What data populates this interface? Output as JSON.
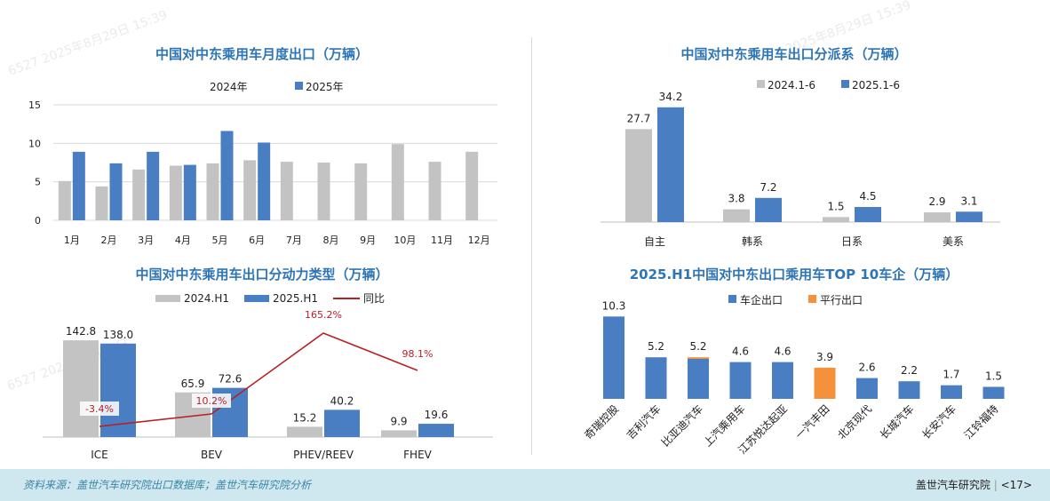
{
  "footer": {
    "source": "资料来源：盖世汽车研究院出口数据库；盖世汽车研究院分析",
    "org": "盖世汽车研究院",
    "page": "<17>"
  },
  "colors": {
    "blue": "#4A7EC2",
    "gray": "#C3C3C3",
    "orange": "#F5913A",
    "red": "#B82025",
    "title": "#2E75B6"
  },
  "chart_data": [
    {
      "id": "monthly",
      "type": "bar",
      "title": "中国对中东乘用车月度出口（万辆）",
      "categories": [
        "1月",
        "2月",
        "3月",
        "4月",
        "5月",
        "6月",
        "7月",
        "8月",
        "9月",
        "10月",
        "11月",
        "12月"
      ],
      "series": [
        {
          "name": "2024年",
          "values": [
            5.1,
            4.4,
            6.6,
            7.1,
            7.4,
            7.8,
            7.6,
            7.5,
            7.4,
            9.9,
            7.6,
            8.9
          ]
        },
        {
          "name": "2025年",
          "values": [
            8.9,
            7.4,
            8.9,
            7.2,
            11.6,
            10.1,
            null,
            null,
            null,
            null,
            null,
            null
          ]
        }
      ],
      "yticks": [
        0,
        5,
        10,
        15
      ],
      "ylim": [
        0,
        15
      ]
    },
    {
      "id": "powertrain",
      "type": "bar",
      "title": "中国对中东乘用车出口分动力类型（万辆）",
      "categories": [
        "ICE",
        "BEV",
        "PHEV/REEV",
        "FHEV"
      ],
      "series": [
        {
          "name": "2024.H1",
          "values": [
            142.8,
            65.9,
            15.2,
            9.9
          ]
        },
        {
          "name": "2025.H1",
          "values": [
            138.0,
            72.6,
            40.2,
            19.6
          ]
        }
      ],
      "line": {
        "name": "同比",
        "values": [
          -3.4,
          10.2,
          165.2,
          98.1
        ],
        "labels": [
          "-3.4%",
          "10.2%",
          "165.2%",
          "98.1%"
        ]
      },
      "ylim": [
        0,
        160
      ]
    },
    {
      "id": "brand_origin",
      "type": "bar",
      "title": "中国对中东乘用车出口分派系（万辆）",
      "categories": [
        "自主",
        "韩系",
        "日系",
        "美系"
      ],
      "series": [
        {
          "name": "2024.1-6",
          "values": [
            27.7,
            3.8,
            1.5,
            2.9
          ]
        },
        {
          "name": "2025.1-6",
          "values": [
            34.2,
            7.2,
            4.5,
            3.1
          ]
        }
      ],
      "ylim": [
        0,
        36
      ]
    },
    {
      "id": "top10",
      "type": "bar",
      "title": "2025.H1中国对中东出口乘用车TOP 10车企（万辆）",
      "categories": [
        "奇瑞控股",
        "吉利汽车",
        "比亚迪汽车",
        "上汽乘用车",
        "江苏悦达起亚",
        "一汽丰田",
        "北京现代",
        "长城汽车",
        "长安汽车",
        "江铃福特"
      ],
      "series": [
        {
          "name": "车企出口",
          "values": [
            10.3,
            5.2,
            5.0,
            4.6,
            4.6,
            0,
            2.6,
            2.2,
            1.7,
            1.5
          ]
        },
        {
          "name": "平行出口",
          "values": [
            0,
            0,
            0.2,
            0,
            0,
            3.9,
            0,
            0,
            0,
            0
          ]
        }
      ],
      "totals": [
        "10.3",
        "5.2",
        "5.2",
        "4.6",
        "4.6",
        "3.9",
        "2.6",
        "2.2",
        "1.7",
        "1.5"
      ],
      "ylim": [
        0,
        11
      ]
    }
  ]
}
